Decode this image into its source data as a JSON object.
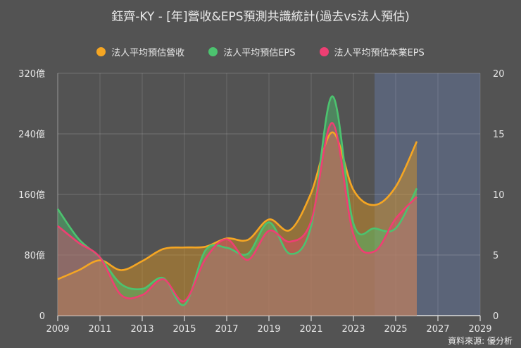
{
  "title": "鈺齊-KY - [年]營收&EPS預測共識統計(過去vs法人預估)",
  "source": "資料來源: 優分析",
  "legend": [
    {
      "label": "法人平均預估營收",
      "color": "#f5a623"
    },
    {
      "label": "法人平均預估EPS",
      "color": "#4cc36f"
    },
    {
      "label": "法人平均預估本業EPS",
      "color": "#ee3f73"
    }
  ],
  "chart_data": {
    "type": "area",
    "title": "鈺齊-KY - [年]營收&EPS預測共識統計(過去vs法人預估)",
    "x": [
      2009,
      2010,
      2011,
      2012,
      2013,
      2014,
      2015,
      2016,
      2017,
      2018,
      2019,
      2020,
      2021,
      2022,
      2023,
      2024,
      2025,
      2026
    ],
    "xticks": [
      2009,
      2011,
      2013,
      2015,
      2017,
      2019,
      2021,
      2023,
      2025,
      2027,
      2029
    ],
    "xlim": [
      2009,
      2029
    ],
    "y_left": {
      "ticks": [
        "0",
        "80億",
        "160億",
        "240億",
        "320億"
      ],
      "lim": [
        0,
        320
      ],
      "unit": "億"
    },
    "y_right": {
      "ticks": [
        "0",
        "5",
        "10",
        "15",
        "20"
      ],
      "lim": [
        0,
        20
      ]
    },
    "forecast_region": [
      2024,
      2029
    ],
    "grid": true,
    "legend_position": "top",
    "series": [
      {
        "name": "法人平均預估營收",
        "axis": "left",
        "color": "#f5a623",
        "values": [
          48,
          60,
          73,
          60,
          72,
          88,
          90,
          91,
          102,
          100,
          127,
          113,
          162,
          242,
          166,
          146,
          170,
          230
        ]
      },
      {
        "name": "法人平均預估EPS",
        "axis": "right",
        "color": "#4cc36f",
        "values": [
          8.8,
          6.3,
          4.8,
          2.6,
          2.2,
          3.1,
          0.9,
          5.4,
          5.6,
          5.1,
          7.7,
          5.1,
          7.4,
          18.1,
          7.6,
          7.2,
          7.2,
          10.5
        ]
      },
      {
        "name": "法人平均預估本業EPS",
        "axis": "right",
        "color": "#ee3f73",
        "values": [
          7.4,
          6.0,
          4.8,
          1.7,
          1.7,
          3.0,
          1.2,
          4.7,
          6.3,
          4.6,
          7.0,
          6.1,
          7.8,
          15.9,
          6.7,
          5.3,
          8.0,
          9.8
        ]
      }
    ]
  }
}
